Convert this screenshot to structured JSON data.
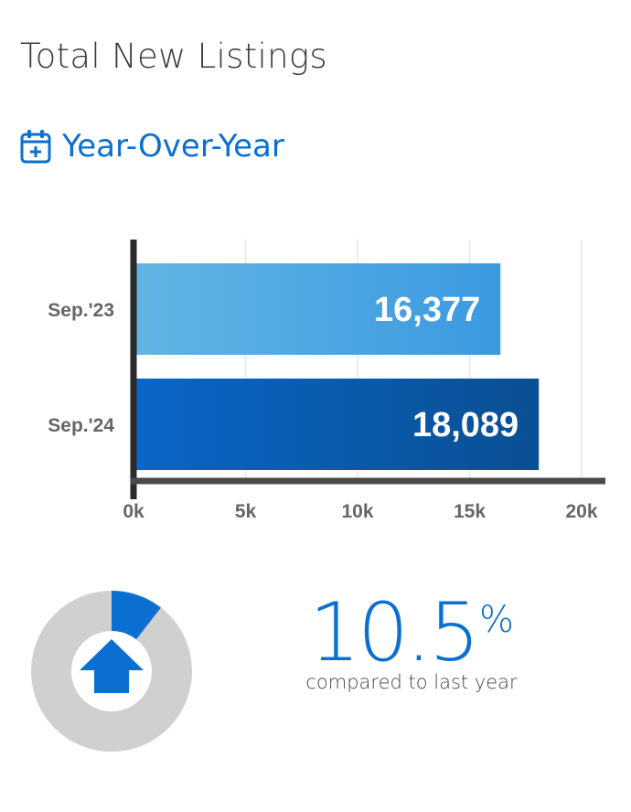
{
  "header": {
    "title": "Total New Listings",
    "period_label": "Year-Over-Year"
  },
  "icons": {
    "calendar": "calendar-plus-icon",
    "trend": "arrow-up-icon"
  },
  "colors": {
    "accent": "#0b6fd0",
    "bar_light_start": "#63b4e4",
    "bar_light_end": "#3a9ae0",
    "bar_dark_start": "#0a66c8",
    "bar_dark_end": "#0a4f93",
    "axis": "#2b2b2b",
    "donut_track": "#d0d0d0",
    "donut_fill": "#0b6fd0"
  },
  "chart_data": {
    "type": "bar",
    "orientation": "horizontal",
    "categories": [
      "Sep.'23",
      "Sep.'24"
    ],
    "values": [
      16377,
      18089
    ],
    "value_labels": [
      "16,377",
      "18,089"
    ],
    "x_ticks": [
      0,
      5000,
      10000,
      15000,
      20000
    ],
    "x_tick_labels": [
      "0k",
      "5k",
      "10k",
      "15k",
      "20k"
    ],
    "xlim": [
      0,
      20000
    ],
    "grid": true,
    "title": "",
    "xlabel": "",
    "ylabel": ""
  },
  "change": {
    "percent_value": "10.5",
    "percent_symbol": "%",
    "percent_fraction": 0.105,
    "direction": "up",
    "caption": "compared to last year"
  }
}
